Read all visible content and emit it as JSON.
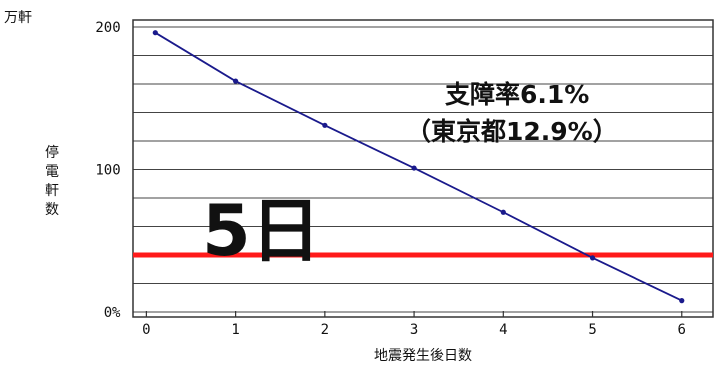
{
  "chart_data": {
    "type": "line",
    "unit_label": "万軒",
    "ylabel": "停電軒数",
    "xlabel": "地震発生後日数",
    "x_ticks": [
      "0",
      "1",
      "2",
      "3",
      "4",
      "5",
      "6"
    ],
    "y_ticks": [
      "0",
      "100",
      "200"
    ],
    "zero_suffix": "%",
    "xlim": [
      -0.15,
      6.35
    ],
    "ylim": [
      0,
      200
    ],
    "grid": true,
    "series": [
      {
        "x": [
          0.1,
          1.0,
          2.0,
          3.0,
          4.0,
          5.0,
          6.0
        ],
        "y": [
          196,
          162,
          131,
          101,
          70,
          38,
          8
        ],
        "color": "#1a1a8c"
      }
    ],
    "hline": {
      "y": 40,
      "color": "#ff1a1a"
    },
    "annotations": {
      "big_label": "5日",
      "rate_line1": "支障率6.1%",
      "rate_line2": "（東京都12.9%）"
    }
  }
}
